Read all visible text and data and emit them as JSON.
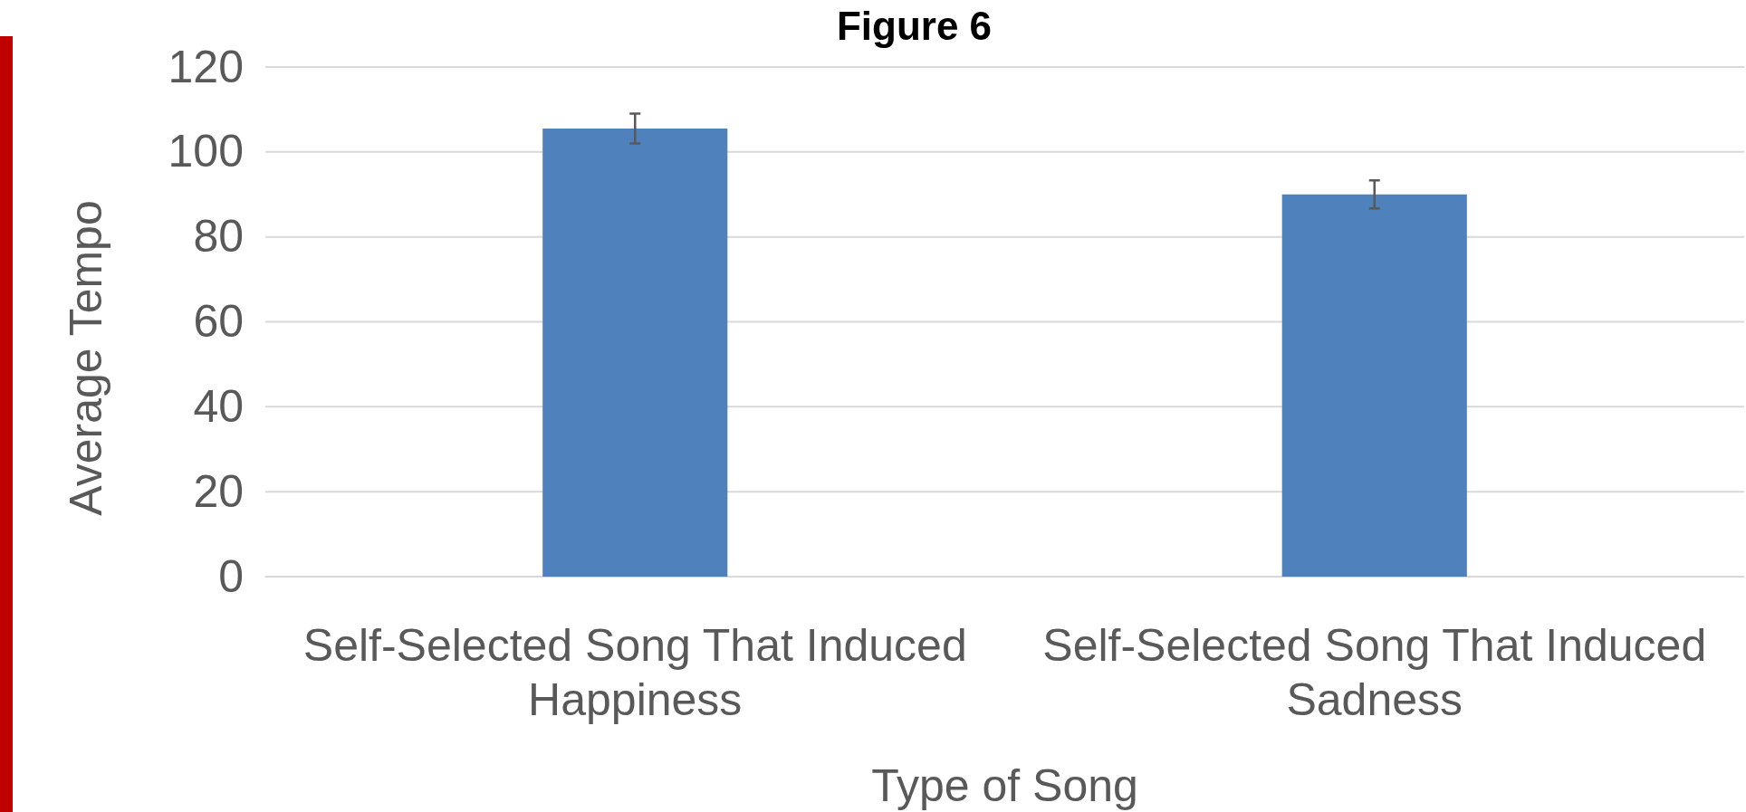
{
  "chart_data": {
    "type": "bar",
    "title": "Figure 6",
    "xlabel": "Type of Song",
    "ylabel": "Average Tempo",
    "categories": [
      "Self-Selected Song That Induced Happiness",
      "Self-Selected Song That Induced Sadness"
    ],
    "values": [
      105.5,
      90
    ],
    "errors": [
      3.5,
      3.3
    ],
    "color": "#4f81bd",
    "ylim": [
      0,
      120
    ],
    "yticks": [
      0,
      20,
      40,
      60,
      80,
      100,
      120
    ],
    "grid": "y"
  }
}
